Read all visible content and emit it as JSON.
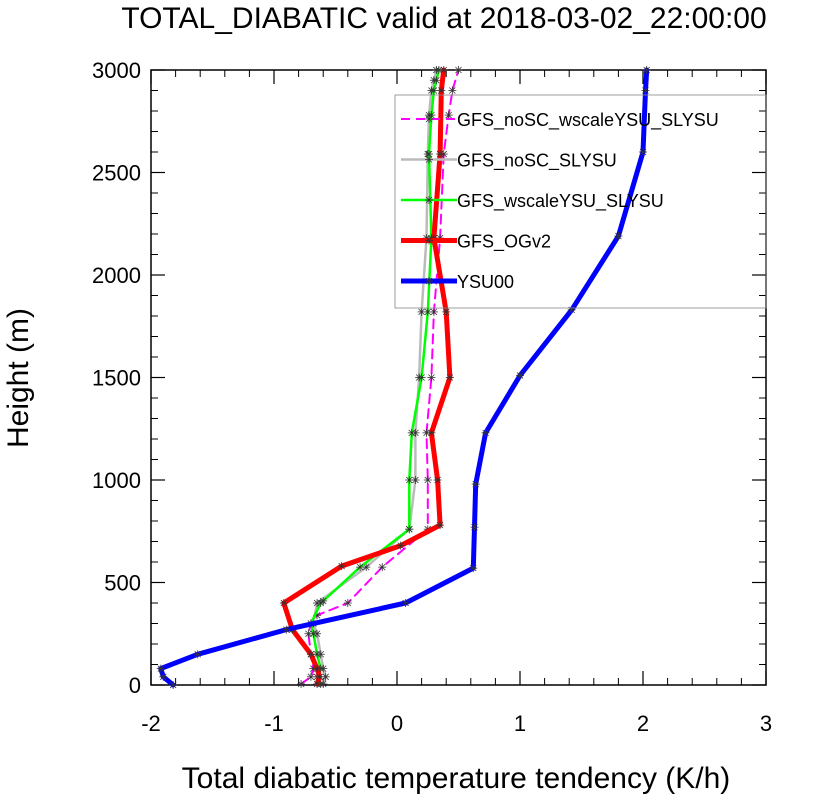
{
  "chart_data": {
    "type": "line",
    "title": "TOTAL_DIABATIC valid at 2018-03-02_22:00:00",
    "xlabel": "Total diabatic temperature tendency (K/h)",
    "ylabel": "Height (m)",
    "xlim": [
      -2,
      3
    ],
    "ylim": [
      0,
      3000
    ],
    "xticks": [
      -2,
      -1,
      0,
      1,
      2,
      3
    ],
    "xtick_labels": [
      "-2",
      "-1",
      "0",
      "1",
      "2",
      "3"
    ],
    "yticks": [
      0,
      500,
      1000,
      1500,
      2000,
      2500,
      3000
    ],
    "ytick_labels": [
      "0",
      "500",
      "1000",
      "1500",
      "2000",
      "2500",
      "3000"
    ],
    "grid": false,
    "legend_position": "top-right",
    "series": [
      {
        "name": "GFS_noSC_wscaleYSU_SLYSU",
        "color": "#ff00ff",
        "dash": "dashed",
        "width": 2,
        "x": [
          -0.78,
          -0.7,
          -0.68,
          -0.7,
          -0.72,
          -0.7,
          -0.65,
          -0.4,
          -0.12,
          0.25,
          0.25,
          0.24,
          0.28,
          0.3,
          0.35,
          0.38,
          0.42,
          0.45,
          0.5
        ],
        "y": [
          5,
          40,
          80,
          150,
          250,
          300,
          340,
          400,
          575,
          760,
          1000,
          1230,
          1500,
          1820,
          2180,
          2590,
          2780,
          2900,
          3000
        ]
      },
      {
        "name": "GFS_noSC_SLYSU",
        "color": "#bbbbbb",
        "dash": "solid",
        "width": 2.5,
        "x": [
          -0.6,
          -0.58,
          -0.6,
          -0.62,
          -0.65,
          -0.68,
          -0.65,
          -0.25,
          0.1,
          0.15,
          0.15,
          0.18,
          0.2,
          0.24,
          0.25,
          0.26,
          0.28,
          0.3,
          0.32
        ],
        "y": [
          5,
          40,
          80,
          150,
          250,
          300,
          400,
          575,
          760,
          1000,
          1230,
          1500,
          1820,
          2180,
          2590,
          2780,
          2900,
          2950,
          3000
        ]
      },
      {
        "name": "GFS_wscaleYSU_SLYSU",
        "color": "#00ff00",
        "dash": "solid",
        "width": 2.5,
        "x": [
          -0.62,
          -0.65,
          -0.62,
          -0.65,
          -0.68,
          -0.7,
          -0.62,
          -0.6,
          -0.3,
          0.1,
          0.1,
          0.12,
          0.2,
          0.25,
          0.28,
          0.26,
          0.28,
          0.3,
          0.32,
          0.34
        ],
        "y": [
          5,
          40,
          80,
          150,
          250,
          300,
          400,
          410,
          575,
          760,
          1000,
          1230,
          1500,
          1820,
          2180,
          2590,
          2780,
          2900,
          2950,
          3000
        ]
      },
      {
        "name": "GFS_OGv2",
        "color": "#ff0000",
        "dash": "solid",
        "width": 5,
        "x": [
          -0.65,
          -0.63,
          -0.65,
          -0.7,
          -0.85,
          -0.92,
          -0.45,
          0.03,
          0.35,
          0.33,
          0.28,
          0.43,
          0.4,
          0.3,
          0.35,
          0.36,
          0.38
        ],
        "y": [
          5,
          40,
          80,
          150,
          270,
          400,
          580,
          680,
          780,
          1000,
          1230,
          1500,
          1820,
          2180,
          2590,
          2900,
          3000
        ]
      },
      {
        "name": "YSU00",
        "color": "#0000ff",
        "dash": "solid",
        "width": 5,
        "x": [
          -1.82,
          -1.9,
          -1.92,
          -1.62,
          -0.9,
          0.07,
          0.62,
          0.63,
          0.64,
          0.72,
          1.0,
          1.42,
          1.8,
          2.0,
          2.02,
          2.03
        ],
        "y": [
          0,
          40,
          80,
          150,
          270,
          400,
          570,
          770,
          980,
          1230,
          1510,
          1830,
          2190,
          2600,
          2900,
          3000
        ]
      }
    ]
  }
}
